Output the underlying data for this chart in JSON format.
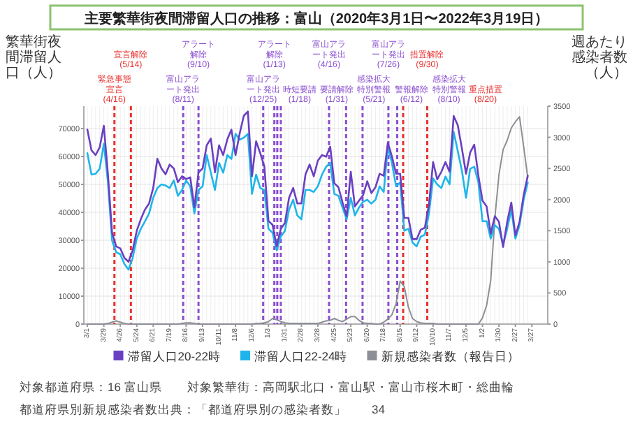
{
  "chart_data": {
    "type": "line",
    "title": "主要繁華街夜間滞留人口の推移：富山（2020年3月1日〜2022年3月19日）",
    "ylabel": "繁華街夜間滞留人口（人）",
    "y2label": "週あたり感染者数（人）",
    "x": [
      "2020-03-01",
      "2020-03-08",
      "2020-03-15",
      "2020-03-22",
      "2020-03-29",
      "2020-04-05",
      "2020-04-12",
      "2020-04-19",
      "2020-04-26",
      "2020-05-03",
      "2020-05-10",
      "2020-05-17",
      "2020-05-24",
      "2020-05-31",
      "2020-06-07",
      "2020-06-14",
      "2020-06-21",
      "2020-06-28",
      "2020-07-05",
      "2020-07-12",
      "2020-07-19",
      "2020-07-26",
      "2020-08-02",
      "2020-08-09",
      "2020-08-16",
      "2020-08-23",
      "2020-08-30",
      "2020-09-06",
      "2020-09-13",
      "2020-09-20",
      "2020-09-27",
      "2020-10-04",
      "2020-10-11",
      "2020-10-18",
      "2020-10-25",
      "2020-11-01",
      "2020-11-08",
      "2020-11-15",
      "2020-11-22",
      "2020-11-29",
      "2020-12-06",
      "2020-12-13",
      "2020-12-20",
      "2020-12-27",
      "2021-01-03",
      "2021-01-10",
      "2021-01-17",
      "2021-01-24",
      "2021-01-31",
      "2021-02-07",
      "2021-02-14",
      "2021-02-21",
      "2021-02-28",
      "2021-03-07",
      "2021-03-14",
      "2021-03-21",
      "2021-03-28",
      "2021-04-04",
      "2021-04-11",
      "2021-04-18",
      "2021-04-25",
      "2021-05-02",
      "2021-05-09",
      "2021-05-16",
      "2021-05-23",
      "2021-05-30",
      "2021-06-06",
      "2021-06-13",
      "2021-06-20",
      "2021-06-27",
      "2021-07-04",
      "2021-07-11",
      "2021-07-18",
      "2021-07-25",
      "2021-08-01",
      "2021-08-08",
      "2021-08-15",
      "2021-08-22",
      "2021-08-29",
      "2021-09-05",
      "2021-09-12",
      "2021-09-19",
      "2021-09-26",
      "2021-10-03",
      "2021-10-10",
      "2021-10-17",
      "2021-10-24",
      "2021-10-31",
      "2021-11-07",
      "2021-11-14",
      "2021-11-21",
      "2021-11-28",
      "2021-12-05",
      "2021-12-12",
      "2021-12-19",
      "2021-12-26",
      "2022-01-02",
      "2022-01-09",
      "2022-01-16",
      "2022-01-23",
      "2022-01-30",
      "2022-02-06",
      "2022-02-13",
      "2022-02-20",
      "2022-02-27",
      "2022-03-06",
      "2022-03-13",
      "2022-03-20"
    ],
    "xlim": [
      "2020-02-24",
      "2022-04-23"
    ],
    "xticks": [
      {
        "value": "2020-03-01",
        "label": "3/1"
      },
      {
        "value": "2020-03-29",
        "label": "3/29"
      },
      {
        "value": "2020-04-26",
        "label": "4/26"
      },
      {
        "value": "2020-05-24",
        "label": "5/24"
      },
      {
        "value": "2020-06-21",
        "label": "6/21"
      },
      {
        "value": "2020-07-19",
        "label": "7/19"
      },
      {
        "value": "2020-08-16",
        "label": "8/16"
      },
      {
        "value": "2020-09-13",
        "label": "9/13"
      },
      {
        "value": "2020-10-11",
        "label": "10/11"
      },
      {
        "value": "2020-11-08",
        "label": "11/8"
      },
      {
        "value": "2020-12-06",
        "label": "12/6"
      },
      {
        "value": "2021-01-03",
        "label": "1/3"
      },
      {
        "value": "2021-01-31",
        "label": "1/31"
      },
      {
        "value": "2021-02-28",
        "label": "2/28"
      },
      {
        "value": "2021-03-28",
        "label": "3/28"
      },
      {
        "value": "2021-04-25",
        "label": "4/25"
      },
      {
        "value": "2021-05-23",
        "label": "5/23"
      },
      {
        "value": "2021-06-20",
        "label": "6/20"
      },
      {
        "value": "2021-07-18",
        "label": "7/18"
      },
      {
        "value": "2021-08-15",
        "label": "8/15"
      },
      {
        "value": "2021-09-12",
        "label": "9/12"
      },
      {
        "value": "2021-10-10",
        "label": "10/10"
      },
      {
        "value": "2021-11-07",
        "label": "11/7"
      },
      {
        "value": "2021-12-05",
        "label": "12/5"
      },
      {
        "value": "2022-01-02",
        "label": "1/2"
      },
      {
        "value": "2022-01-30",
        "label": "1/30"
      },
      {
        "value": "2022-02-27",
        "label": "2/27"
      },
      {
        "value": "2022-03-27",
        "label": "3/27"
      }
    ],
    "ylim": [
      0,
      78000
    ],
    "yticks": [
      0,
      10000,
      20000,
      30000,
      40000,
      50000,
      60000,
      70000
    ],
    "y2lim": [
      0,
      3500
    ],
    "y2ticks": [
      0,
      500,
      1000,
      1500,
      2000,
      2500,
      3000,
      3500
    ],
    "grid": true,
    "legend": "bottom",
    "series": [
      {
        "name": "滞留人口20-22時",
        "color": "#6a3fc1",
        "values": [
          69600,
          62200,
          60500,
          63300,
          71000,
          53600,
          32700,
          27800,
          27100,
          23700,
          22300,
          26400,
          33400,
          37600,
          41000,
          43200,
          48700,
          59200,
          55700,
          53600,
          57100,
          55700,
          50800,
          52900,
          51900,
          52500,
          41800,
          54300,
          55700,
          64000,
          66400,
          54300,
          64000,
          60500,
          66100,
          69600,
          60500,
          68200,
          74500,
          76100,
          52900,
          65400,
          61200,
          56400,
          36900,
          35500,
          27800,
          34100,
          36200,
          45200,
          48700,
          43200,
          43200,
          53600,
          57100,
          52900,
          58500,
          60500,
          59900,
          63500,
          50400,
          49000,
          43500,
          38600,
          54500,
          42100,
          44200,
          46200,
          51100,
          46900,
          49000,
          53800,
          53100,
          64900,
          60000,
          53800,
          53800,
          38000,
          38000,
          30400,
          30400,
          33800,
          34500,
          42800,
          58000,
          51800,
          54500,
          58000,
          54500,
          74500,
          71100,
          62800,
          53800,
          61400,
          64200,
          53100,
          44200,
          42100,
          32400,
          38600,
          36600,
          27600,
          36600,
          43500,
          31700,
          36600,
          46200,
          53100
        ]
      },
      {
        "name": "滞留人口22-24時",
        "color": "#1fb5ea",
        "values": [
          61200,
          53500,
          53800,
          55600,
          64600,
          50700,
          29900,
          25700,
          25000,
          21500,
          19500,
          23600,
          30600,
          34100,
          36800,
          39600,
          45200,
          48700,
          50000,
          49600,
          48700,
          51400,
          45900,
          48000,
          51400,
          49300,
          39600,
          48000,
          49300,
          60500,
          54200,
          48000,
          57700,
          54200,
          60500,
          59100,
          68100,
          66000,
          66700,
          68100,
          46600,
          53500,
          48700,
          48000,
          34100,
          32700,
          26400,
          31300,
          33400,
          41000,
          44500,
          38900,
          37500,
          48000,
          48000,
          47300,
          49300,
          53500,
          56300,
          57700,
          46600,
          45900,
          41700,
          37500,
          45200,
          38900,
          41700,
          43800,
          44500,
          43100,
          44500,
          49300,
          47300,
          63200,
          57700,
          49300,
          50700,
          33400,
          34100,
          29200,
          27800,
          31300,
          32000,
          39600,
          52100,
          50000,
          48700,
          52800,
          50000,
          68800,
          61900,
          54900,
          45200,
          55600,
          56300,
          50700,
          36800,
          36800,
          30600,
          35400,
          34100,
          28500,
          34100,
          41000,
          30600,
          35400,
          44500,
          50700
        ]
      },
      {
        "name": "新規感染者数（報告日）",
        "color": "#8c8f96",
        "axis": "y2",
        "values": [
          0,
          0,
          0,
          0,
          0,
          10,
          30,
          50,
          30,
          10,
          0,
          0,
          0,
          0,
          0,
          0,
          0,
          0,
          0,
          0,
          0,
          0,
          0,
          10,
          20,
          20,
          10,
          0,
          0,
          0,
          0,
          0,
          0,
          0,
          0,
          0,
          0,
          0,
          0,
          0,
          0,
          10,
          10,
          20,
          40,
          90,
          70,
          40,
          20,
          10,
          10,
          10,
          10,
          10,
          10,
          10,
          10,
          30,
          50,
          60,
          90,
          60,
          40,
          80,
          120,
          120,
          60,
          20,
          10,
          10,
          0,
          0,
          30,
          80,
          150,
          330,
          690,
          600,
          270,
          90,
          40,
          20,
          10,
          10,
          10,
          0,
          0,
          0,
          0,
          0,
          0,
          0,
          0,
          0,
          0,
          0,
          100,
          300,
          700,
          1700,
          2400,
          2800,
          2950,
          3150,
          3250,
          3330,
          2850,
          2350
        ]
      }
    ],
    "ref_lines": [
      {
        "axis": "x",
        "value": "2020-04-16",
        "label": "緊急事態宣言(4/16)",
        "color": "#e8312f",
        "line_style": "dashed"
      },
      {
        "axis": "x",
        "value": "2020-05-14",
        "label": "宣言解除(5/14)",
        "color": "#e8312f",
        "line_style": "dashed"
      },
      {
        "axis": "x",
        "value": "2020-08-11",
        "label": "富山アラート発出(8/11)",
        "color": "#8a4fd0",
        "line_style": "dashed"
      },
      {
        "axis": "x",
        "value": "2020-09-06",
        "label": "アラート解除(9/10)",
        "color": "#8a4fd0",
        "line_style": "dashed"
      },
      {
        "axis": "x",
        "value": "2020-12-25",
        "label": "富山アラート発出(12/25)",
        "color": "#8a4fd0",
        "line_style": "dashed"
      },
      {
        "axis": "x",
        "value": "2021-01-13",
        "label": "アラート解除(1/13)",
        "color": "#8a4fd0",
        "line_style": "dashed"
      },
      {
        "axis": "x",
        "value": "2021-01-18",
        "label": "時短要請(1/18)",
        "color": "#8a4fd0",
        "line_style": "dashed"
      },
      {
        "axis": "x",
        "value": "2021-01-24",
        "label": "要請解除(1/31)",
        "color": "#8a4fd0",
        "line_style": "dashed"
      },
      {
        "axis": "x",
        "value": "2021-04-16",
        "label": "富山アラート発出(4/16)",
        "color": "#8a4fd0",
        "line_style": "dashed"
      },
      {
        "axis": "x",
        "value": "2021-05-15",
        "label": "感染拡大特別警報(5/21)",
        "color": "#8a4fd0",
        "line_style": "dashed"
      },
      {
        "axis": "x",
        "value": "2021-06-12",
        "label": "警報解除(6/12)",
        "color": "#8a4fd0",
        "line_style": "dashed"
      },
      {
        "axis": "x",
        "value": "2021-07-26",
        "label": "富山アラート発出(7/26)",
        "color": "#8a4fd0",
        "line_style": "dashed"
      },
      {
        "axis": "x",
        "value": "2021-08-10",
        "label": "感染拡大特別警報(8/10)",
        "color": "#8a4fd0",
        "line_style": "dashed"
      },
      {
        "axis": "x",
        "value": "2021-08-20",
        "label": "重点措置(8/20)",
        "color": "#e8312f",
        "line_style": "dashed"
      },
      {
        "axis": "x",
        "value": "2021-09-30",
        "label": "措置解除(9/30)",
        "color": "#e8312f",
        "line_style": "dashed"
      }
    ],
    "annotations": [
      "対象都道府県：16 富山県",
      "対象繁華街：高岡駅北口・富山駅・富山市桜木町・総曲輪",
      "都道府県別新規感染者数出典：「都道府県別の感染者数」",
      "34"
    ]
  }
}
